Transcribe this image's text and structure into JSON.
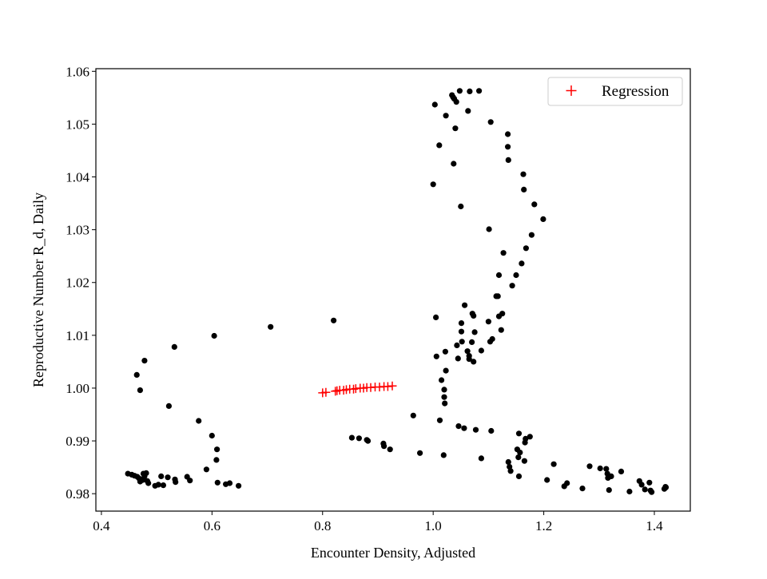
{
  "chart_data": {
    "type": "scatter",
    "xlabel": "Encounter Density, Adjusted",
    "ylabel": "Reproductive Number R_d, Daily",
    "xlim": [
      0.39,
      1.465
    ],
    "ylim": [
      0.9767,
      1.0605
    ],
    "xticks": [
      0.4,
      0.6,
      0.8,
      1.0,
      1.2,
      1.4
    ],
    "xtick_labels": [
      "0.4",
      "0.6",
      "0.8",
      "1.0",
      "1.2",
      "1.4"
    ],
    "yticks": [
      0.98,
      0.99,
      1.0,
      1.01,
      1.02,
      1.03,
      1.04,
      1.05,
      1.06
    ],
    "ytick_labels": [
      "0.98",
      "0.99",
      "1.00",
      "1.01",
      "1.02",
      "1.03",
      "1.04",
      "1.05",
      "1.06"
    ],
    "grid": false,
    "legend": {
      "position": "top-right",
      "entries": [
        {
          "label": "Regression",
          "marker": "+",
          "color": "#ff0000"
        }
      ]
    },
    "series": [
      {
        "marker": "dot",
        "color": "#000000",
        "points": [
          [
            0.448,
            0.9838
          ],
          [
            0.455,
            0.9836
          ],
          [
            0.46,
            0.9834
          ],
          [
            0.465,
            0.9832
          ],
          [
            0.468,
            0.9829
          ],
          [
            0.47,
            0.9823
          ],
          [
            0.473,
            0.9827
          ],
          [
            0.476,
            0.9838
          ],
          [
            0.478,
            0.9833
          ],
          [
            0.481,
            0.9839
          ],
          [
            0.483,
            0.9824
          ],
          [
            0.485,
            0.982
          ],
          [
            0.475,
            0.9826
          ],
          [
            0.497,
            0.9815
          ],
          [
            0.503,
            0.9817
          ],
          [
            0.508,
            0.9833
          ],
          [
            0.512,
            0.9816
          ],
          [
            0.52,
            0.9831
          ],
          [
            0.533,
            0.9827
          ],
          [
            0.534,
            0.9822
          ],
          [
            0.555,
            0.9832
          ],
          [
            0.56,
            0.9825
          ],
          [
            0.464,
            1.0025
          ],
          [
            0.47,
            0.9996
          ],
          [
            0.478,
            1.0052
          ],
          [
            0.522,
            0.9966
          ],
          [
            0.532,
            1.0078
          ],
          [
            0.576,
            0.9938
          ],
          [
            0.59,
            0.9846
          ],
          [
            0.6,
            0.991
          ],
          [
            0.604,
            1.0099
          ],
          [
            0.608,
            0.9864
          ],
          [
            0.609,
            0.9884
          ],
          [
            0.61,
            0.9821
          ],
          [
            0.625,
            0.9818
          ],
          [
            0.632,
            0.982
          ],
          [
            0.648,
            0.9815
          ],
          [
            0.706,
            1.0116
          ],
          [
            0.82,
            1.0128
          ],
          [
            0.853,
            0.9906
          ],
          [
            0.866,
            0.9905
          ],
          [
            0.88,
            0.9902
          ],
          [
            0.882,
            0.99
          ],
          [
            0.91,
            0.9895
          ],
          [
            0.911,
            0.989
          ],
          [
            0.922,
            0.9884
          ],
          [
            0.964,
            0.9948
          ],
          [
            0.976,
            0.9877
          ],
          [
            1.0,
            1.0386
          ],
          [
            1.003,
            1.0537
          ],
          [
            1.005,
            1.0134
          ],
          [
            1.006,
            1.006
          ],
          [
            1.011,
            1.046
          ],
          [
            1.012,
            0.9939
          ],
          [
            1.015,
            1.0015
          ],
          [
            1.019,
            0.9873
          ],
          [
            1.02,
            0.9997
          ],
          [
            1.02,
            0.9983
          ],
          [
            1.021,
            0.9971
          ],
          [
            1.022,
            1.0069
          ],
          [
            1.023,
            1.0033
          ],
          [
            1.023,
            1.0516
          ],
          [
            1.034,
            1.0555
          ],
          [
            1.036,
            1.0551
          ],
          [
            1.037,
            1.0425
          ],
          [
            1.038,
            1.0548
          ],
          [
            1.04,
            1.0492
          ],
          [
            1.042,
            1.0542
          ],
          [
            1.043,
            1.0081
          ],
          [
            1.045,
            1.0056
          ],
          [
            1.046,
            0.9928
          ],
          [
            1.048,
            1.0563
          ],
          [
            1.05,
            1.0344
          ],
          [
            1.051,
            1.0123
          ],
          [
            1.051,
            1.0107
          ],
          [
            1.052,
            1.0088
          ],
          [
            1.056,
            0.9924
          ],
          [
            1.057,
            1.0157
          ],
          [
            1.062,
            1.007
          ],
          [
            1.063,
            1.0525
          ],
          [
            1.065,
            1.0061
          ],
          [
            1.065,
            1.0055
          ],
          [
            1.066,
            1.0562
          ],
          [
            1.07,
            1.0087
          ],
          [
            1.071,
            1.0141
          ],
          [
            1.073,
            1.0137
          ],
          [
            1.073,
            1.005
          ],
          [
            1.075,
            1.0106
          ],
          [
            1.077,
            0.9921
          ],
          [
            1.083,
            1.0563
          ],
          [
            1.087,
            1.0071
          ],
          [
            1.087,
            0.9867
          ],
          [
            1.1,
            1.0126
          ],
          [
            1.101,
            1.0301
          ],
          [
            1.103,
            1.0088
          ],
          [
            1.104,
            1.0504
          ],
          [
            1.105,
            0.9919
          ],
          [
            1.107,
            1.0093
          ],
          [
            1.114,
            1.0174
          ],
          [
            1.117,
            1.0174
          ],
          [
            1.119,
            1.0136
          ],
          [
            1.119,
            1.0214
          ],
          [
            1.123,
            1.011
          ],
          [
            1.125,
            1.0141
          ],
          [
            1.127,
            1.0256
          ],
          [
            1.135,
            1.0481
          ],
          [
            1.135,
            1.0457
          ],
          [
            1.136,
            1.0432
          ],
          [
            1.136,
            0.986
          ],
          [
            1.138,
            0.9851
          ],
          [
            1.14,
            0.9843
          ],
          [
            1.143,
            1.0194
          ],
          [
            1.15,
            1.0214
          ],
          [
            1.152,
            0.9884
          ],
          [
            1.154,
            0.9869
          ],
          [
            1.155,
            0.9833
          ],
          [
            1.155,
            0.9914
          ],
          [
            1.157,
            0.9878
          ],
          [
            1.16,
            1.0236
          ],
          [
            1.163,
            1.0405
          ],
          [
            1.164,
            1.0376
          ],
          [
            1.165,
            0.9862
          ],
          [
            1.166,
            0.9897
          ],
          [
            1.167,
            0.9904
          ],
          [
            1.168,
            1.0265
          ],
          [
            1.175,
            0.9908
          ],
          [
            1.178,
            1.029
          ],
          [
            1.183,
            1.0348
          ],
          [
            1.199,
            1.032
          ],
          [
            1.206,
            0.9826
          ],
          [
            1.218,
            0.9856
          ],
          [
            1.237,
            0.9814
          ],
          [
            1.242,
            0.982
          ],
          [
            1.27,
            0.981
          ],
          [
            1.283,
            0.9852
          ],
          [
            1.302,
            0.9848
          ],
          [
            1.313,
            0.9847
          ],
          [
            1.315,
            0.9838
          ],
          [
            1.316,
            0.983
          ],
          [
            1.318,
            0.9807
          ],
          [
            1.322,
            0.9833
          ],
          [
            1.34,
            0.9842
          ],
          [
            1.355,
            0.9804
          ],
          [
            1.373,
            0.9824
          ],
          [
            1.377,
            0.9817
          ],
          [
            1.383,
            0.9808
          ],
          [
            1.391,
            0.9821
          ],
          [
            1.393,
            0.9806
          ],
          [
            1.395,
            0.9803
          ],
          [
            1.418,
            0.9809
          ],
          [
            1.42,
            0.9813
          ],
          [
            1.421,
            0.9812
          ]
        ]
      },
      {
        "name": "Regression",
        "marker": "+",
        "color": "#ff0000",
        "points": [
          [
            0.8,
            0.9991
          ],
          [
            0.806,
            0.9992
          ],
          [
            0.823,
            0.9994
          ],
          [
            0.826,
            0.9995
          ],
          [
            0.831,
            0.9996
          ],
          [
            0.838,
            0.9996
          ],
          [
            0.843,
            0.9997
          ],
          [
            0.849,
            0.9998
          ],
          [
            0.856,
            0.9998
          ],
          [
            0.86,
            0.9999
          ],
          [
            0.868,
            1.0
          ],
          [
            0.874,
            1.0
          ],
          [
            0.88,
            1.0001
          ],
          [
            0.887,
            1.0001
          ],
          [
            0.895,
            1.0002
          ],
          [
            0.903,
            1.0002
          ],
          [
            0.911,
            1.0003
          ],
          [
            0.918,
            1.0003
          ],
          [
            0.926,
            1.0004
          ]
        ]
      }
    ]
  }
}
